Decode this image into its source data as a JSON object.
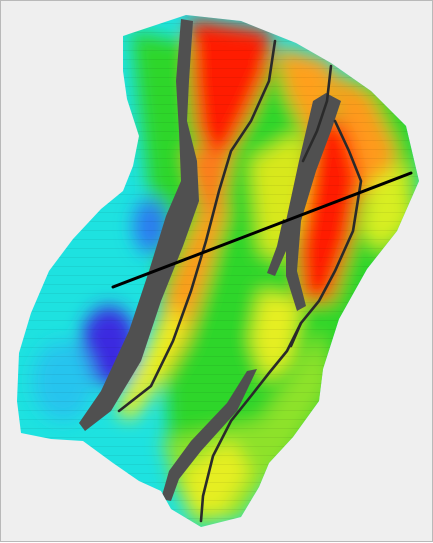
{
  "map": {
    "kind": "structure-contour-map",
    "background_color": "#efefef",
    "border_color": "#b9b9b9",
    "fault_color": "#505050",
    "section_line_color": "#000000",
    "color_ramp": [
      "#1e14c8",
      "#00aaff",
      "#1ee6e6",
      "#1ec81e",
      "#9be61e",
      "#f0f01e",
      "#ffa01e",
      "#ff0000"
    ],
    "legend_visible": false,
    "labels_visible": false
  }
}
